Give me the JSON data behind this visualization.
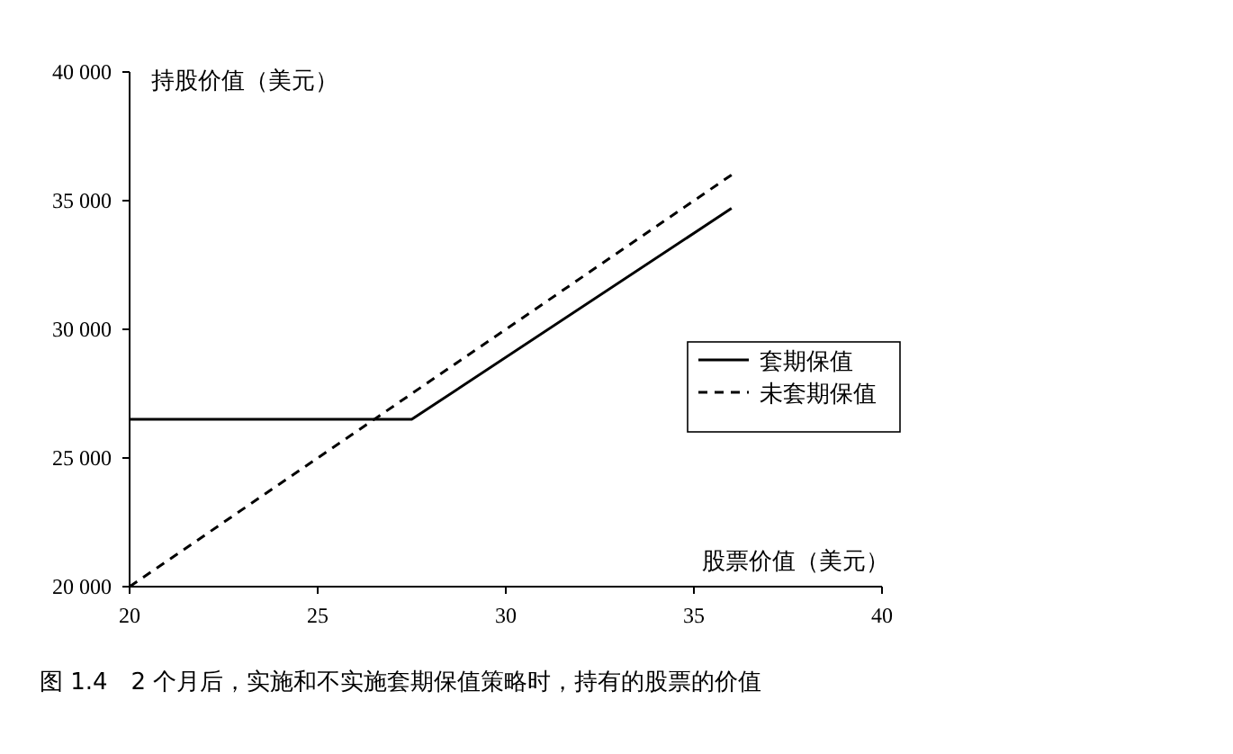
{
  "chart_data": {
    "type": "line",
    "xlabel": "股票价值（美元）",
    "ylabel": "持股价值（美元）",
    "xlim": [
      20,
      40
    ],
    "xticks": [
      20,
      25,
      30,
      35,
      40
    ],
    "ylim": [
      20000,
      40000
    ],
    "yticks": [
      {
        "value": 20000,
        "label": "20 000"
      },
      {
        "value": 25000,
        "label": "25 000"
      },
      {
        "value": 30000,
        "label": "30 000"
      },
      {
        "value": 35000,
        "label": "35 000"
      },
      {
        "value": 40000,
        "label": "40 000"
      }
    ],
    "series": [
      {
        "name": "套期保值",
        "color": "#000000",
        "line_style": "solid",
        "x": [
          20,
          27.5,
          36
        ],
        "values": [
          26500,
          26500,
          34700
        ]
      },
      {
        "name": "未套期保值",
        "color": "#000000",
        "line_style": "dashed",
        "x": [
          20,
          36
        ],
        "values": [
          20000,
          36000
        ]
      }
    ],
    "legend": "right",
    "grid": false,
    "annotations": [
      "图 1.4　2 个月后，实施和不实施套期保值策略时，持有的股票的价值"
    ]
  }
}
